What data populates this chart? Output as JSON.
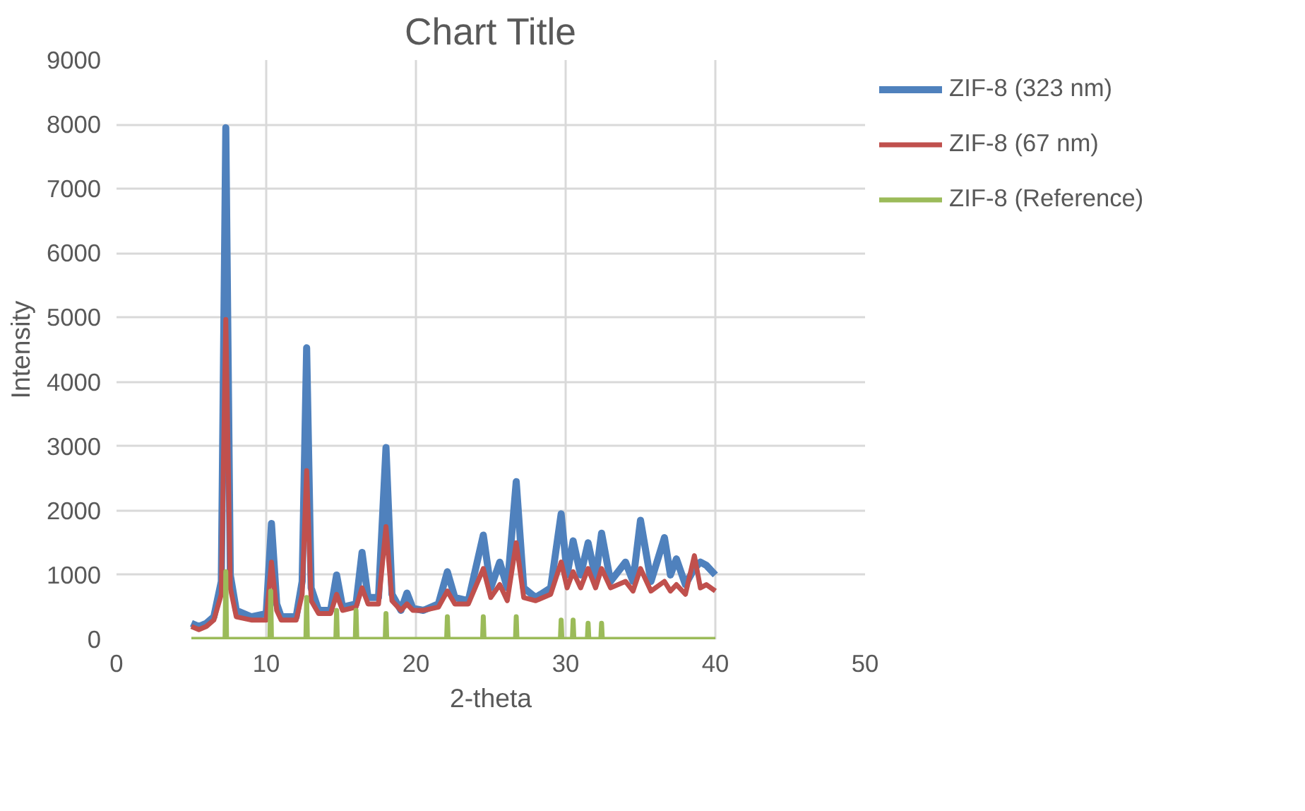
{
  "chart_data": {
    "type": "line",
    "title": "Chart Title",
    "xlabel": "2-theta",
    "ylabel": "Intensity",
    "xlim": [
      0,
      50
    ],
    "xticks": [
      0,
      10,
      20,
      30,
      40,
      50
    ],
    "ylim": [
      0,
      9000
    ],
    "yticks": [
      0,
      1000,
      2000,
      3000,
      4000,
      5000,
      6000,
      7000,
      8000,
      9000
    ],
    "grid": true,
    "legend": "right",
    "marker": "none",
    "line_style": "solid",
    "series": [
      {
        "name": "ZIF-8 (323 nm)",
        "color": "#4f81bd",
        "x": [
          5,
          5.5,
          6,
          6.5,
          7,
          7.3,
          7.6,
          8,
          9,
          10,
          10.35,
          10.7,
          11,
          12,
          12.4,
          12.7,
          13,
          13.5,
          14.3,
          14.7,
          15.1,
          16,
          16.4,
          16.8,
          17.5,
          18.0,
          18.4,
          19,
          19.4,
          19.8,
          20.5,
          21.5,
          22.1,
          22.6,
          23.5,
          24.5,
          25,
          25.6,
          26.1,
          26.7,
          27.2,
          28,
          29,
          29.7,
          30.1,
          30.5,
          31,
          31.5,
          32,
          32.4,
          33,
          34,
          34.5,
          35,
          35.7,
          36.6,
          37,
          37.4,
          38,
          38.6,
          39,
          39.4,
          40
        ],
        "values": [
          250,
          200,
          250,
          350,
          900,
          7950,
          1000,
          450,
          350,
          400,
          1800,
          550,
          350,
          350,
          900,
          4530,
          800,
          450,
          450,
          1000,
          500,
          550,
          1350,
          650,
          650,
          2980,
          700,
          450,
          720,
          480,
          450,
          550,
          1050,
          650,
          600,
          1620,
          800,
          1200,
          800,
          2450,
          800,
          650,
          800,
          1950,
          1000,
          1530,
          1000,
          1500,
          950,
          1650,
          900,
          1200,
          900,
          1850,
          900,
          1580,
          1000,
          1250,
          850,
          1100,
          1200,
          1150,
          1000
        ]
      },
      {
        "name": "ZIF-8 (67 nm)",
        "color": "#c0504d",
        "x": [
          5,
          5.5,
          6,
          6.5,
          7,
          7.3,
          7.6,
          8,
          9,
          10,
          10.35,
          10.7,
          11,
          12,
          12.4,
          12.7,
          13,
          13.5,
          14.3,
          14.7,
          15.1,
          16,
          16.4,
          16.8,
          17.5,
          18.0,
          18.4,
          19,
          19.4,
          19.8,
          20.5,
          21.5,
          22.1,
          22.6,
          23.5,
          24.5,
          25,
          25.6,
          26.1,
          26.7,
          27.2,
          28,
          29,
          29.7,
          30.1,
          30.5,
          31,
          31.5,
          32,
          32.4,
          33,
          34,
          34.5,
          35,
          35.7,
          36.6,
          37,
          37.4,
          38,
          38.6,
          39,
          39.4,
          40
        ],
        "values": [
          200,
          150,
          200,
          300,
          700,
          4970,
          800,
          350,
          300,
          300,
          1200,
          450,
          300,
          300,
          700,
          2620,
          600,
          400,
          400,
          700,
          450,
          500,
          800,
          550,
          550,
          1750,
          600,
          450,
          550,
          450,
          450,
          500,
          750,
          550,
          550,
          1100,
          650,
          850,
          600,
          1500,
          650,
          600,
          700,
          1200,
          800,
          1050,
          800,
          1100,
          800,
          1100,
          800,
          900,
          750,
          1100,
          750,
          900,
          750,
          850,
          700,
          1300,
          800,
          850,
          750
        ]
      },
      {
        "name": "ZIF-8 (Reference)",
        "color": "#9bbb59",
        "x": [
          5,
          7.25,
          7.3,
          7.35,
          10.25,
          10.3,
          10.35,
          12.65,
          12.7,
          12.75,
          14.65,
          14.7,
          14.75,
          15.95,
          16.0,
          16.05,
          17.95,
          18.0,
          18.05,
          22.05,
          22.1,
          22.15,
          24.45,
          24.5,
          24.55,
          26.65,
          26.7,
          26.75,
          29.65,
          29.7,
          29.75,
          30.45,
          30.5,
          30.55,
          31.45,
          31.5,
          31.55,
          32.35,
          32.4,
          32.45,
          40
        ],
        "values": [
          0,
          0,
          1050,
          0,
          0,
          750,
          0,
          0,
          650,
          0,
          0,
          450,
          0,
          0,
          450,
          0,
          0,
          400,
          0,
          0,
          350,
          0,
          0,
          350,
          0,
          0,
          350,
          0,
          0,
          300,
          0,
          0,
          300,
          0,
          0,
          250,
          0,
          0,
          250,
          0,
          0
        ]
      }
    ]
  }
}
